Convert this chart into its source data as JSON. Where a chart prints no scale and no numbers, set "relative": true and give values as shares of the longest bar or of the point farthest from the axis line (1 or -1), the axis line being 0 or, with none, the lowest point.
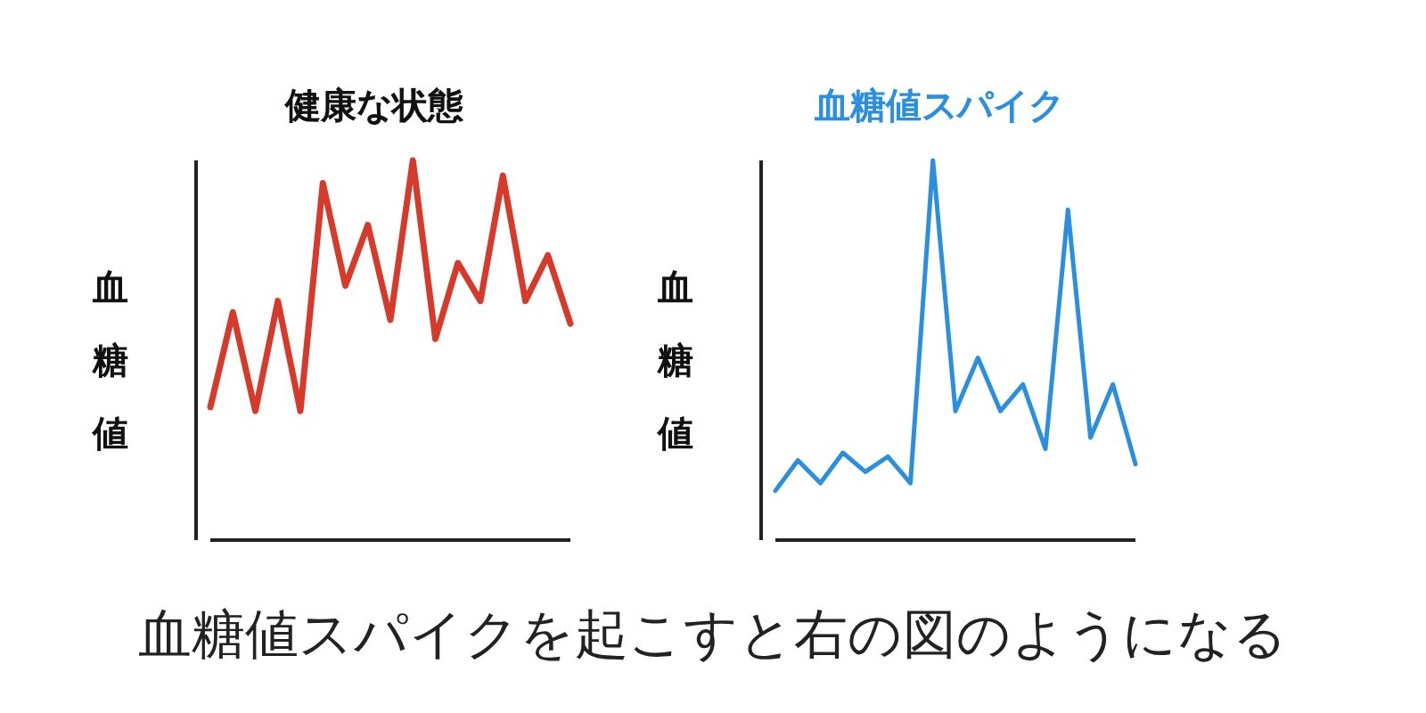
{
  "chart_data": [
    {
      "type": "line",
      "title": "健康な状態",
      "ylabel": "血糖値",
      "relative": true,
      "categories": [
        null,
        null,
        null,
        null,
        null,
        null,
        null,
        null,
        null,
        null,
        null,
        null,
        null,
        null,
        null,
        null,
        null
      ],
      "series": [
        {
          "color": "#d63a2a",
          "values": [
            0.35,
            0.6,
            0.34,
            0.63,
            0.34,
            0.94,
            0.67,
            0.83,
            0.58,
            1,
            0.53,
            0.73,
            0.63,
            0.96,
            0.63,
            0.75,
            0.57
          ]
        }
      ],
      "annotations": [
        "血糖値スパイクを起こすと右の図のようになる"
      ]
    },
    {
      "type": "line",
      "title": "血糖値スパイク",
      "ylabel": "血糖値",
      "relative": true,
      "categories": [
        null,
        null,
        null,
        null,
        null,
        null,
        null,
        null,
        null,
        null,
        null,
        null,
        null,
        null,
        null,
        null,
        null
      ],
      "series": [
        {
          "color": "#2b8fe0",
          "values": [
            0.13,
            0.21,
            0.15,
            0.23,
            0.18,
            0.22,
            0.15,
            1,
            0.34,
            0.48,
            0.34,
            0.41,
            0.24,
            0.87,
            0.27,
            0.41,
            0.2
          ]
        }
      ]
    }
  ]
}
